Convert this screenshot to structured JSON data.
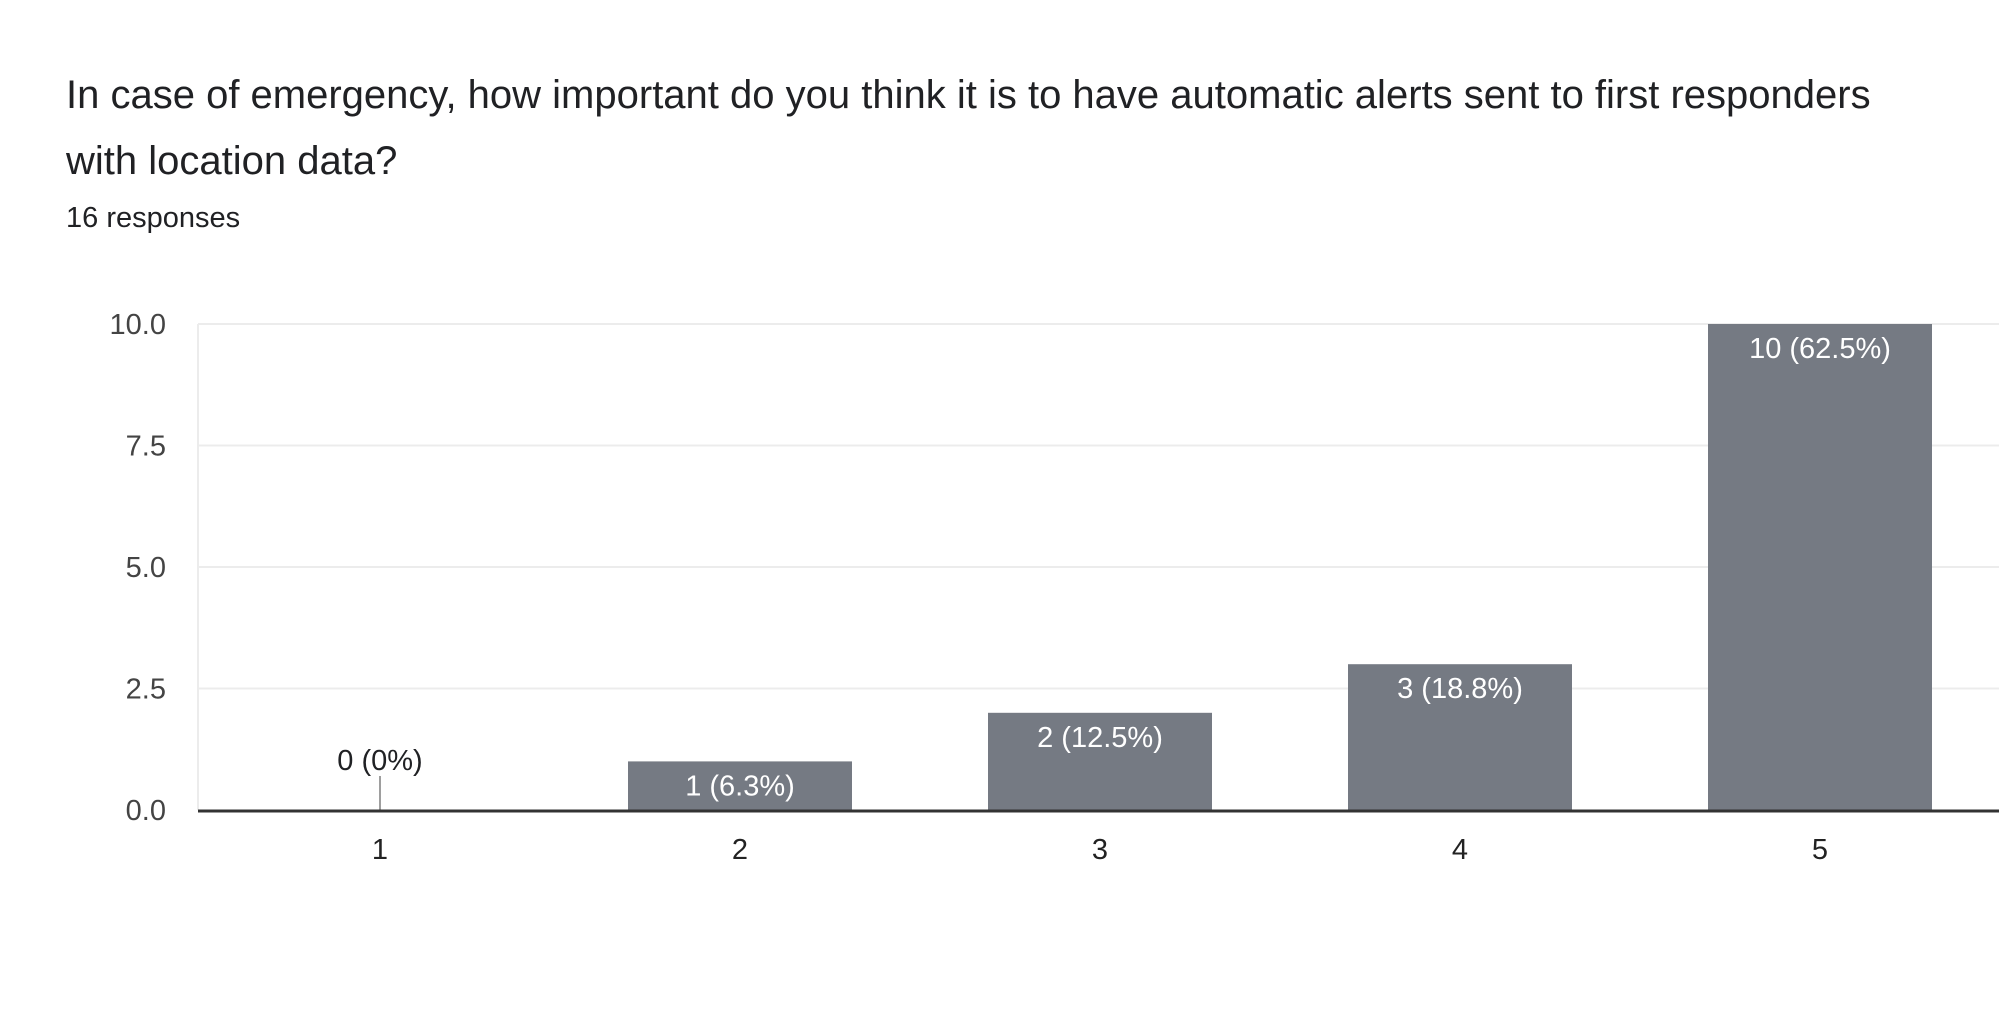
{
  "question": {
    "title": "In case of emergency, how important do you think it is to have automatic alerts sent to first responders with location data?",
    "responses": "16 responses"
  },
  "colors": {
    "bar": "#757a83",
    "grid": "#ececec",
    "axis": "#333333",
    "label_inside": "#ffffff",
    "label_outside": "#202124"
  },
  "chart_data": {
    "type": "bar",
    "categories": [
      "1",
      "2",
      "3",
      "4",
      "5"
    ],
    "values": [
      0,
      1,
      2,
      3,
      10
    ],
    "data_labels": [
      "0 (0%)",
      "1 (6.3%)",
      "2 (12.5%)",
      "3 (18.8%)",
      "10 (62.5%)"
    ],
    "y_ticks": [
      "0.0",
      "2.5",
      "5.0",
      "7.5",
      "10.0"
    ],
    "ylim": [
      0,
      10
    ],
    "grid": true,
    "title": "",
    "xlabel": "",
    "ylabel": ""
  }
}
